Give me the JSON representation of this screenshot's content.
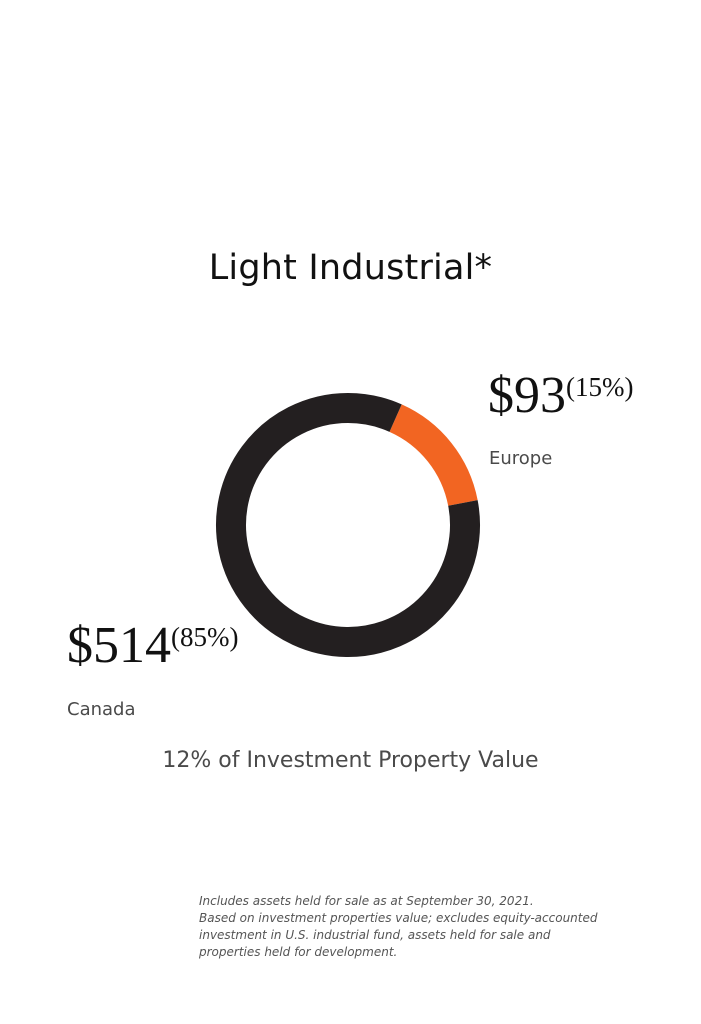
{
  "chart_data": {
    "type": "pie",
    "title": "Light Industrial*",
    "subtitle": "12% of Investment Property Value",
    "categories": [
      "Canada",
      "Europe"
    ],
    "values": [
      514,
      93
    ],
    "value_labels": [
      "$514",
      "$93"
    ],
    "percent_labels": [
      "(85%)",
      "(15%)"
    ],
    "colors": [
      "#231f20",
      "#f26522"
    ],
    "legend": "none"
  },
  "notes": [
    "Includes assets held for sale as at September 30, 2021.",
    "Based on investment properties value; excludes equity-accounted",
    "investment in U.S. industrial fund, assets held for sale and",
    "properties held for development."
  ]
}
